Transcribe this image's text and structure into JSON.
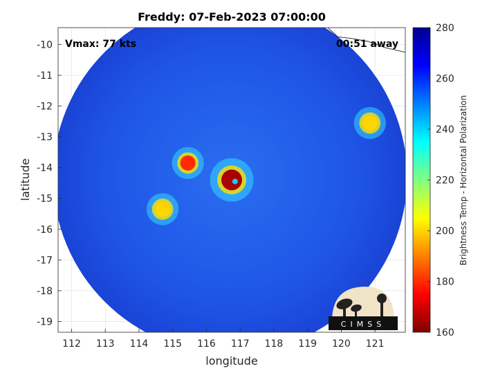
{
  "chart_data": {
    "type": "heatmap",
    "title": "Freddy: 07-Feb-2023 07:00:00",
    "xlabel": "longitude",
    "ylabel": "latitude",
    "xlim": [
      111.6,
      121.9
    ],
    "ylim": [
      -19.35,
      -9.45
    ],
    "x_ticks": [
      112,
      113,
      114,
      115,
      116,
      117,
      118,
      119,
      120,
      121
    ],
    "y_ticks": [
      -10,
      -11,
      -12,
      -13,
      -14,
      -15,
      -16,
      -17,
      -18,
      -19
    ],
    "x_tick_labels": [
      "112",
      "113",
      "114",
      "115",
      "116",
      "117",
      "118",
      "119",
      "120",
      "121"
    ],
    "y_tick_labels": [
      "-10",
      "-11",
      "-12",
      "-13",
      "-14",
      "-15",
      "-16",
      "-17",
      "-18",
      "-19"
    ],
    "grid": true,
    "swath": {
      "center_lon": 116.7,
      "center_lat": -14.3,
      "radius_deg": 5.25
    },
    "background_temp_k": 265,
    "features": [
      {
        "name": "eyewall",
        "lon": 116.75,
        "lat": -14.4,
        "temp_k": 165
      },
      {
        "name": "eye",
        "lon": 116.85,
        "lat": -14.45,
        "temp_k": 240
      },
      {
        "name": "rainband-west",
        "lon": 115.45,
        "lat": -13.85,
        "temp_k": 180
      },
      {
        "name": "rainband-southwest",
        "lon": 114.7,
        "lat": -15.35,
        "temp_k": 200
      },
      {
        "name": "isolated-cell-east",
        "lon": 120.85,
        "lat": -12.55,
        "temp_k": 200
      }
    ],
    "annotations": {
      "vmax": "Vmax: 77 kts",
      "time_offset": "00:51 away"
    },
    "colorbar": {
      "label": "Brightness Temp - Horizontal Polarization",
      "range": [
        160,
        280
      ],
      "ticks": [
        "160",
        "180",
        "200",
        "220",
        "240",
        "260",
        "280"
      ],
      "colormap": [
        "#800000",
        "#ff0000",
        "#ff8000",
        "#ffff00",
        "#80ff80",
        "#00ffff",
        "#0080ff",
        "#0000ff",
        "#00008f"
      ]
    }
  },
  "logo": {
    "text": "CIMSS"
  }
}
